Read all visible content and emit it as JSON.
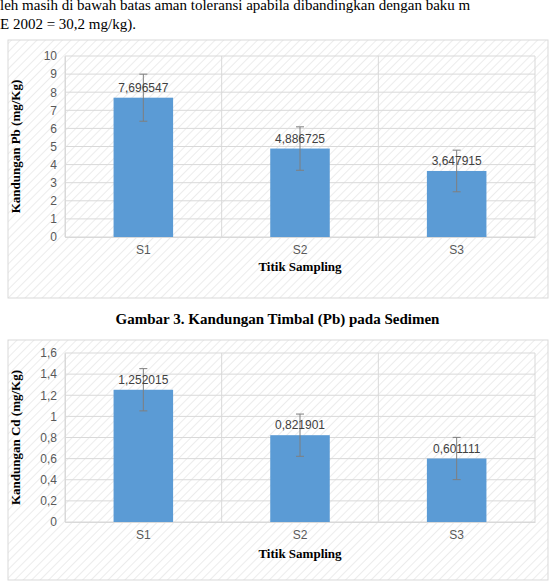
{
  "document": {
    "lines": [
      "leh masih di bawah batas aman toleransi apabila dibandingkan dengan baku m",
      "E 2002 = 30,2 mg/kg)."
    ],
    "caption": "Gambar 3. Kandungan Timbal (Pb) pada Sedimen"
  },
  "chart_data": [
    {
      "type": "bar",
      "y_label": "Kandungan Pb (mg/Kg)",
      "x_label": "Titik Sampling",
      "categories": [
        "S1",
        "S2",
        "S3"
      ],
      "values": [
        7.696547,
        4.886725,
        3.647915
      ],
      "value_labels": [
        "7,696547",
        "4,886725",
        "3,647915"
      ],
      "errors": [
        1.3,
        1.2,
        1.15
      ],
      "color": "#5b9bd5",
      "ylim": [
        0,
        10
      ],
      "yticks": [
        0,
        1,
        2,
        3,
        4,
        5,
        6,
        7,
        8,
        9,
        10
      ],
      "grid": true,
      "data_labels": true
    },
    {
      "type": "bar",
      "y_label": "Kandungan Cd (mg/Kg)",
      "x_label": "Titik Sampling",
      "categories": [
        "S1",
        "S2",
        "S3"
      ],
      "values": [
        1.252015,
        0.821901,
        0.601111
      ],
      "value_labels": [
        "1,252015",
        "0,821901",
        "0,601111"
      ],
      "errors": [
        0.2,
        0.2,
        0.2
      ],
      "color": "#5b9bd5",
      "ylim": [
        0,
        1.6
      ],
      "yticks": [
        0,
        {
          "value": 0.2,
          "label": "0,2"
        },
        {
          "value": 0.4,
          "label": "0,4"
        },
        {
          "value": 0.6,
          "label": "0,6"
        },
        {
          "value": 0.8,
          "label": "0,8"
        },
        1,
        {
          "value": 1.2,
          "label": "1,2"
        },
        {
          "value": 1.4,
          "label": "1,4"
        },
        {
          "value": 1.6,
          "label": "1,6"
        }
      ],
      "grid": true,
      "data_labels": true
    }
  ]
}
